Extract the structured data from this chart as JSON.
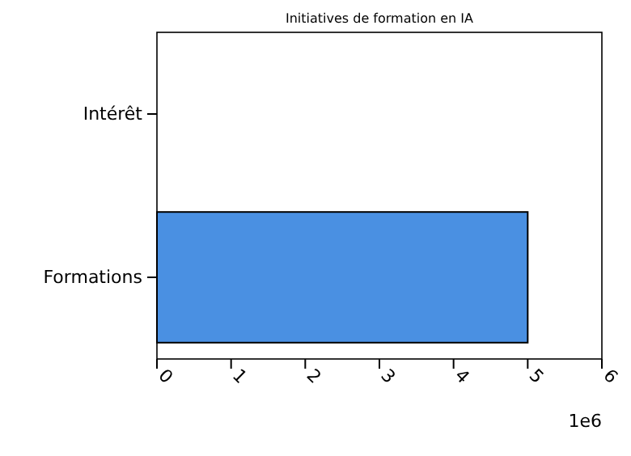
{
  "chart_data": {
    "type": "bar",
    "orientation": "horizontal",
    "title": "Initiatives de formation en IA",
    "categories": [
      "Intérêt",
      "Formations"
    ],
    "values": [
      0,
      5
    ],
    "color": "#4a90e2",
    "xlim": [
      0,
      6
    ],
    "xticks": [
      0,
      1,
      2,
      3,
      4,
      5,
      6
    ],
    "annotations": [
      "1e6"
    ]
  }
}
